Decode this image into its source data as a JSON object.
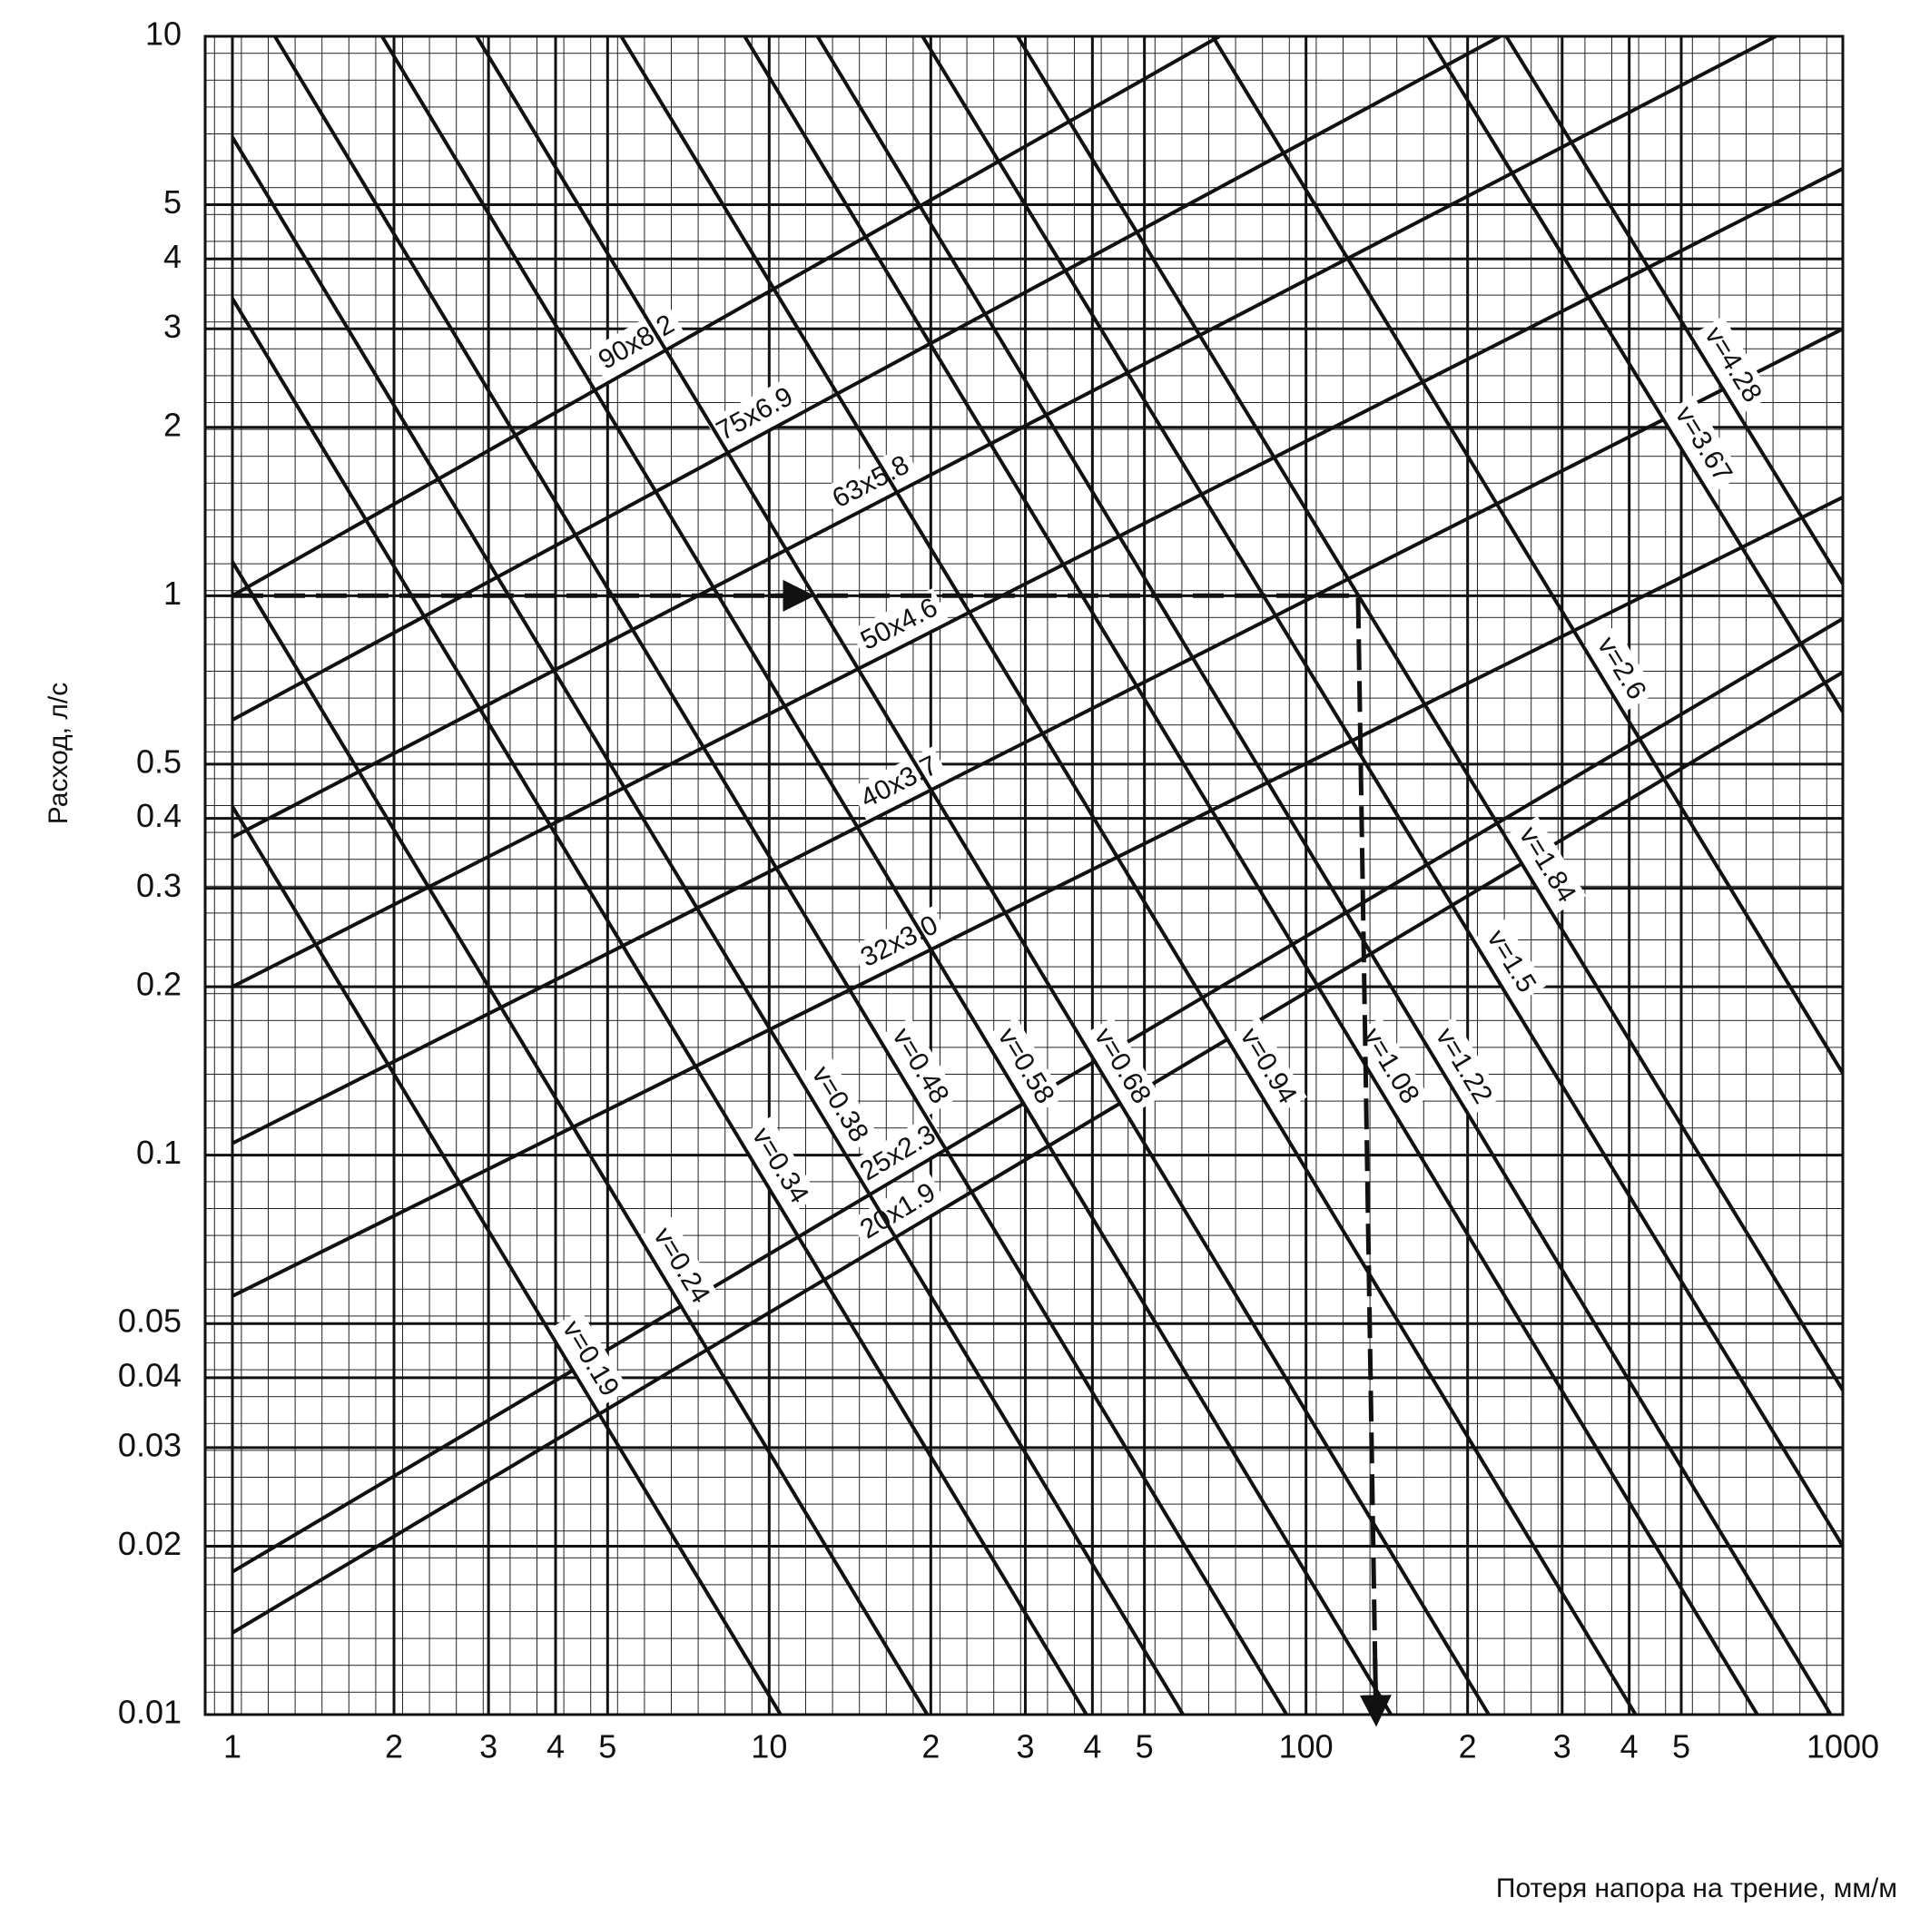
{
  "chart_data": {
    "type": "line",
    "xlabel": "Потеря напора на трение, мм/м",
    "ylabel": "Расход, л/с",
    "xscale": "log",
    "yscale": "log",
    "xlim": [
      1,
      1000
    ],
    "ylim": [
      0.01,
      10
    ],
    "xticks": [
      1,
      {
        "value": 2,
        "label": "2"
      },
      3,
      4,
      5,
      10,
      {
        "value": 20,
        "label": "2"
      },
      {
        "value": 30,
        "label": "3"
      },
      {
        "value": 40,
        "label": "4"
      },
      {
        "value": 50,
        "label": "5"
      },
      100,
      {
        "value": 200,
        "label": "2"
      },
      {
        "value": 300,
        "label": "3"
      },
      {
        "value": 400,
        "label": "4"
      },
      {
        "value": 500,
        "label": "5"
      },
      1000
    ],
    "yticks": [
      0.01,
      0.02,
      0.03,
      0.04,
      0.05,
      0.1,
      0.2,
      0.3,
      0.4,
      0.5,
      1,
      2,
      3,
      4,
      5,
      10
    ],
    "grid": true,
    "series": [
      {
        "name": "90x8.2",
        "color": "#111111",
        "x": [
          1,
          69
        ],
        "values": [
          1.0,
          10
        ]
      },
      {
        "name": "75x6.9",
        "color": "#111111",
        "x": [
          1,
          230
        ],
        "values": [
          0.6,
          10
        ]
      },
      {
        "name": "63x5.8",
        "color": "#111111",
        "x": [
          1,
          750
        ],
        "values": [
          0.37,
          10
        ]
      },
      {
        "name": "50x4.6",
        "color": "#111111",
        "x": [
          1,
          1000
        ],
        "values": [
          0.2,
          5.8
        ]
      },
      {
        "name": "40x3.7",
        "color": "#111111",
        "x": [
          1,
          1000
        ],
        "values": [
          0.105,
          3.0
        ]
      },
      {
        "name": "32x3.0",
        "color": "#111111",
        "x": [
          1,
          1000
        ],
        "values": [
          0.056,
          1.5
        ]
      },
      {
        "name": "25x2.3",
        "color": "#111111",
        "x": [
          1,
          1000
        ],
        "values": [
          0.018,
          0.91
        ]
      },
      {
        "name": "20x1.9",
        "color": "#111111",
        "x": [
          1,
          1000
        ],
        "values": [
          0.014,
          0.73
        ]
      },
      {
        "name": "v=0.19",
        "color": "#111111",
        "x": [
          1,
          10.5
        ],
        "values": [
          0.42,
          0.01
        ]
      },
      {
        "name": "v=0.24",
        "color": "#111111",
        "x": [
          1,
          19.7
        ],
        "values": [
          1.15,
          0.01
        ]
      },
      {
        "name": "v=0.34",
        "color": "#111111",
        "x": [
          1,
          39
        ],
        "values": [
          3.4,
          0.01
        ]
      },
      {
        "name": "v=0.38",
        "color": "#111111",
        "x": [
          1,
          59
        ],
        "values": [
          6.6,
          0.01
        ]
      },
      {
        "name": "v=0.48",
        "color": "#111111",
        "x": [
          1.2,
          92
        ],
        "values": [
          10,
          0.01
        ]
      },
      {
        "name": "v=0.58",
        "color": "#111111",
        "x": [
          1.9,
          144
        ],
        "values": [
          10,
          0.01
        ]
      },
      {
        "name": "v=0.68",
        "color": "#111111",
        "x": [
          2.85,
          219
        ],
        "values": [
          10,
          0.01
        ]
      },
      {
        "name": "v=0.94",
        "color": "#111111",
        "x": [
          5.3,
          411
        ],
        "values": [
          10,
          0.01
        ]
      },
      {
        "name": "v=1.08",
        "color": "#111111",
        "x": [
          9,
          693
        ],
        "values": [
          10,
          0.01
        ]
      },
      {
        "name": "v=1.22",
        "color": "#111111",
        "x": [
          12.3,
          949
        ],
        "values": [
          10,
          0.01
        ]
      },
      {
        "name": "v=1.5",
        "color": "#111111",
        "x": [
          19.3,
          1000
        ],
        "values": [
          10,
          0.02
        ]
      },
      {
        "name": "v=1.84",
        "color": "#111111",
        "x": [
          29,
          1000
        ],
        "values": [
          10,
          0.038
        ]
      },
      {
        "name": "v=2.6",
        "color": "#111111",
        "x": [
          67,
          1000
        ],
        "values": [
          10,
          0.14
        ]
      },
      {
        "name": "v=3.67",
        "color": "#111111",
        "x": [
          169,
          1000
        ],
        "values": [
          10,
          0.62
        ]
      },
      {
        "name": "v=4.28",
        "color": "#111111",
        "x": [
          236,
          1000
        ],
        "values": [
          10,
          1.05
        ]
      }
    ],
    "example_path": {
      "color": "#111111",
      "x": [
        1,
        125,
        135
      ],
      "values": [
        1,
        1,
        0.01
      ]
    }
  }
}
